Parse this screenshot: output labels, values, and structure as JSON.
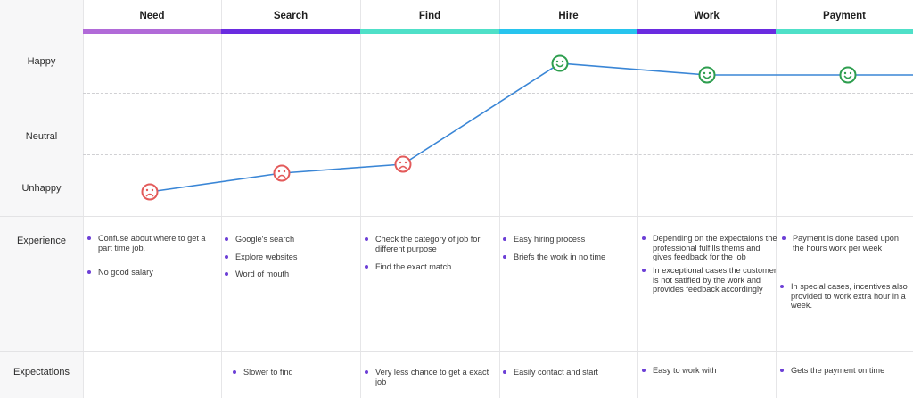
{
  "stages": [
    {
      "name": "Need",
      "color": "#b16ad8",
      "mood": "unhappy",
      "experience": [
        "Confuse about where to get a part time job.",
        "No good salary"
      ],
      "expectations": []
    },
    {
      "name": "Search",
      "color": "#6a2be0",
      "mood": "unhappy",
      "experience": [
        "Google's search",
        "Explore websites",
        "Word of mouth"
      ],
      "expectations": [
        "Slower to find"
      ]
    },
    {
      "name": "Find",
      "color": "#4fe0c8",
      "mood": "unhappy",
      "experience": [
        "Check the category of job for different purpose",
        "Find the exact match"
      ],
      "expectations": [
        "Very less chance to get a exact job"
      ]
    },
    {
      "name": "Hire",
      "color": "#27c4ee",
      "mood": "happy",
      "experience": [
        "Easy hiring process",
        "Briefs the work in no time"
      ],
      "expectations": [
        "Easily contact and start"
      ]
    },
    {
      "name": "Work",
      "color": "#6a2be0",
      "mood": "happy",
      "experience": [
        "Depending on the expectaions the professional fulfills thems and gives feedback for the job",
        "In exceptional cases the customer is not satified by the work and provides feedback accordingly"
      ],
      "expectations": [
        "Easy to work with"
      ]
    },
    {
      "name": "Payment",
      "color": "#4fe0c8",
      "mood": "happy",
      "experience": [
        "Payment is done based upon the  hours work per week",
        "In special cases, incentives also provided to work extra hour in a week."
      ],
      "expectations": [
        "Gets the payment on time"
      ]
    }
  ],
  "rows": {
    "happy": "Happy",
    "neutral": "Neutral",
    "unhappy": "Unhappy",
    "experience": "Experience",
    "expectations": "Expectations"
  },
  "colors": {
    "line": "#3a86d6",
    "happy_face": "#2e9e4f",
    "unhappy_face": "#e35a5a",
    "bullet": "#6c3fd6"
  }
}
